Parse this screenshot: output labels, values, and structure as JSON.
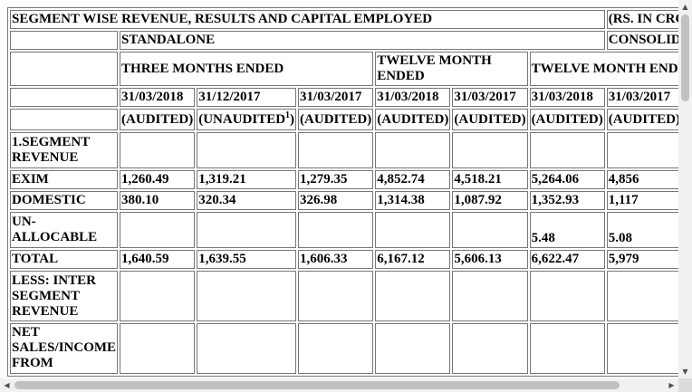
{
  "table": {
    "title": "SEGMENT WISE REVENUE, RESULTS AND CAPITAL EMPLOYED",
    "currency_note": "(RS. IN CRORE)",
    "standalone_label": "STANDALONE",
    "consolidated_label": "CONSOLIDATED",
    "three_months_label": "THREE MONTHS ENDED",
    "twelve_months_label": "TWELVE MONTH ENDED",
    "twelve_months_consolidated_label": "TWELVE MONTH ENDED",
    "dates": [
      "31/03/2018",
      "31/12/2017",
      "31/03/2017",
      "31/03/2018",
      "31/03/2017",
      "31/03/2018",
      "31/03/2017"
    ],
    "statuses": [
      "(AUDITED)",
      "(UNAUDITED",
      "(AUDITED)",
      "(AUDITED)",
      "(AUDITED)",
      "(AUDITED)",
      "(AUDITED)"
    ],
    "unaudited_footnote_mark": "1",
    "unaudited_tail": ")",
    "rows": [
      {
        "label": "1.SEGMENT REVENUE",
        "values": [
          "",
          "",
          "",
          "",
          "",
          "",
          ""
        ]
      },
      {
        "label": "EXIM",
        "values": [
          "1,260.49",
          "1,319.21",
          "1,279.35",
          "4,852.74",
          "4,518.21",
          "5,264.06",
          "4,856"
        ]
      },
      {
        "label": "DOMESTIC",
        "values": [
          "380.10",
          "320.34",
          "326.98",
          "1,314.38",
          "1,087.92",
          "1,352.93",
          "1,117"
        ]
      },
      {
        "label": "UN-ALLOCABLE",
        "values": [
          "",
          "",
          "",
          "",
          "",
          "5.48",
          "5.08"
        ]
      },
      {
        "label": "TOTAL",
        "values": [
          "1,640.59",
          "1,639.55",
          "1,606.33",
          "6,167.12",
          "5,606.13",
          "6,622.47",
          "5,979"
        ]
      },
      {
        "label": "LESS: INTER SEGMENT REVENUE",
        "values": [
          "",
          "",
          "",
          "",
          "",
          "",
          ""
        ]
      },
      {
        "label": "NET SALES/INCOME FROM",
        "values": [
          "",
          "",
          "",
          "",
          "",
          "",
          ""
        ]
      }
    ]
  },
  "scrollbars": {
    "up_arrow": "▲",
    "down_arrow": "▼",
    "left_arrow": "◀",
    "right_arrow": "▶"
  }
}
